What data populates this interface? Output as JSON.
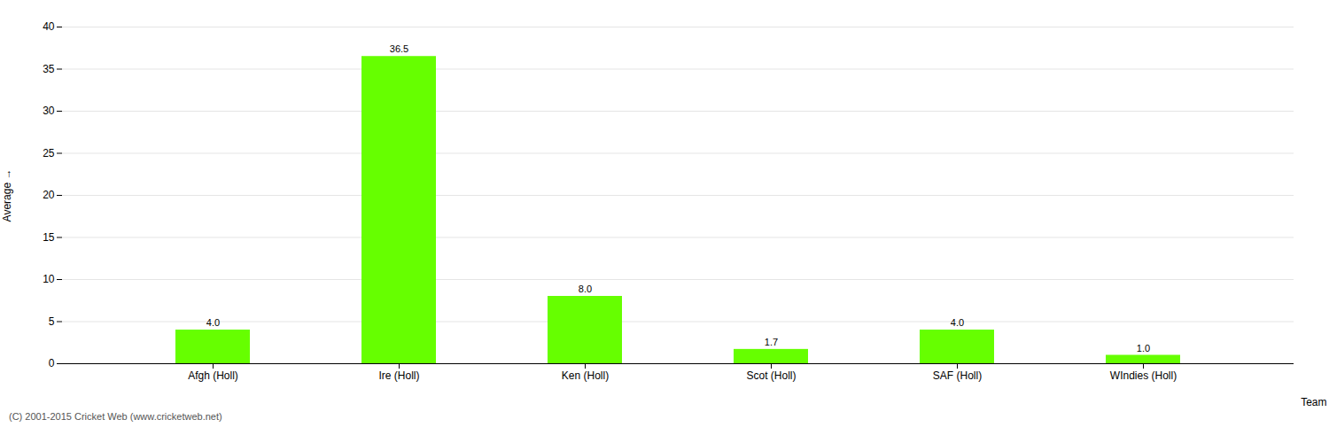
{
  "chart_data": {
    "type": "bar",
    "categories": [
      "Afgh (Holl)",
      "Ire (Holl)",
      "Ken (Holl)",
      "Scot (Holl)",
      "SAF (Holl)",
      "WIndies (Holl)"
    ],
    "values": [
      4.0,
      36.5,
      8.0,
      1.7,
      4.0,
      1.0
    ],
    "value_labels": [
      "4.0",
      "36.5",
      "8.0",
      "1.7",
      "4.0",
      "1.0"
    ],
    "data_labels": true,
    "color": "#66ff00",
    "xlabel": "Team",
    "ylabel": "Average",
    "ylim": [
      0,
      40
    ],
    "yticks": [
      0,
      5,
      10,
      15,
      20,
      25,
      30,
      35,
      40
    ],
    "grid": true,
    "caption": "(C) 2001-2015 Cricket Web (www.cricketweb.net)"
  }
}
